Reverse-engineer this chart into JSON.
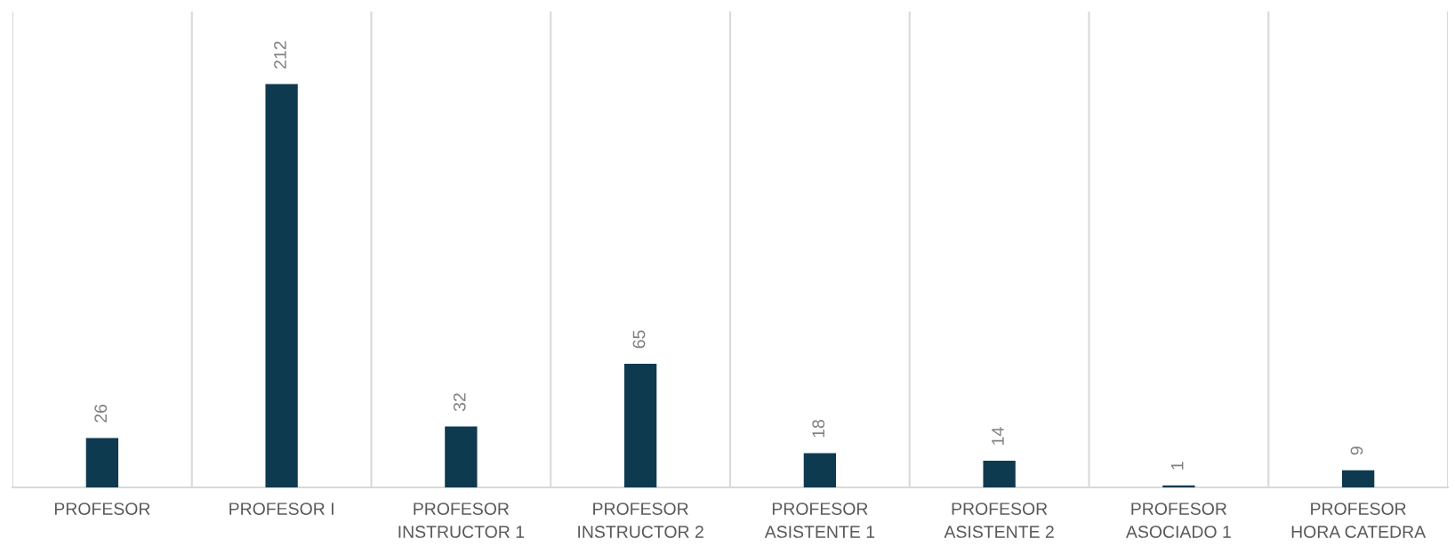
{
  "chart_data": {
    "type": "bar",
    "categories": [
      "PROFESOR",
      "PROFESOR I",
      "PROFESOR\nINSTRUCTOR 1",
      "PROFESOR\nINSTRUCTOR 2",
      "PROFESOR\nASISTENTE 1",
      "PROFESOR\nASISTENTE 2",
      "PROFESOR\nASOCIADO 1",
      "PROFESOR\nHORA CATEDRA"
    ],
    "values": [
      26,
      212,
      32,
      65,
      18,
      14,
      1,
      9
    ],
    "color": "#0e3a4f",
    "data_labels": true,
    "grid": "x"
  }
}
